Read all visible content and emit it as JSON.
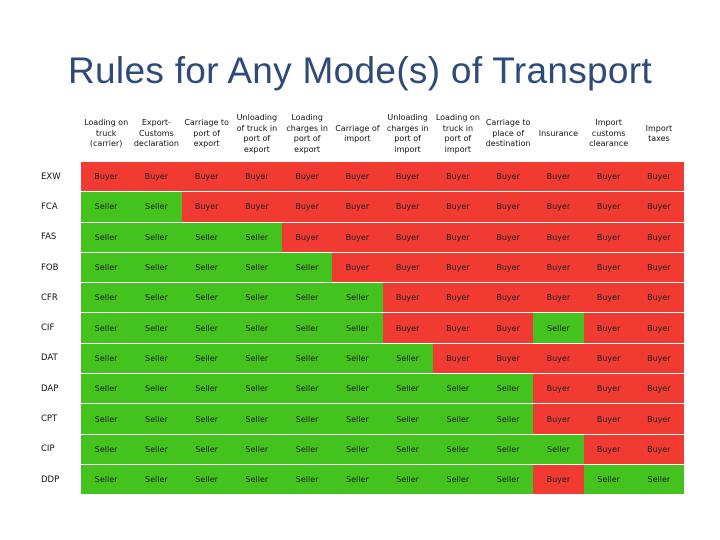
{
  "title": "Rules for Any Mode(s) of Transport",
  "columns": [
    "Loading on truck (carrier)",
    "Export-Customs declaration",
    "Carriage to port of export",
    "Unloading of truck in port of export",
    "Loading charges in port of export",
    "Carriage of import",
    "Unloading charges in port of import",
    "Loading on truck in port of import",
    "Carriage to place of destination",
    "Insurance",
    "Import customs clearance",
    "Import taxes"
  ],
  "rows": [
    {
      "term": "EXW",
      "cells": [
        "Buyer",
        "Buyer",
        "Buyer",
        "Buyer",
        "Buyer",
        "Buyer",
        "Buyer",
        "Buyer",
        "Buyer",
        "Buyer",
        "Buyer",
        "Buyer"
      ]
    },
    {
      "term": "FCA",
      "cells": [
        "Seller",
        "Seller",
        "Buyer",
        "Buyer",
        "Buyer",
        "Buyer",
        "Buyer",
        "Buyer",
        "Buyer",
        "Buyer",
        "Buyer",
        "Buyer"
      ]
    },
    {
      "term": "FAS",
      "cells": [
        "Seller",
        "Seller",
        "Seller",
        "Seller",
        "Buyer",
        "Buyer",
        "Buyer",
        "Buyer",
        "Buyer",
        "Buyer",
        "Buyer",
        "Buyer"
      ]
    },
    {
      "term": "FOB",
      "cells": [
        "Seller",
        "Seller",
        "Seller",
        "Seller",
        "Seller",
        "Buyer",
        "Buyer",
        "Buyer",
        "Buyer",
        "Buyer",
        "Buyer",
        "Buyer"
      ]
    },
    {
      "term": "CFR",
      "cells": [
        "Seller",
        "Seller",
        "Seller",
        "Seller",
        "Seller",
        "Seller",
        "Buyer",
        "Buyer",
        "Buyer",
        "Buyer",
        "Buyer",
        "Buyer"
      ]
    },
    {
      "term": "CIF",
      "cells": [
        "Seller",
        "Seller",
        "Seller",
        "Seller",
        "Seller",
        "Seller",
        "Buyer",
        "Buyer",
        "Buyer",
        "Seller",
        "Buyer",
        "Buyer"
      ]
    },
    {
      "term": "DAT",
      "cells": [
        "Seller",
        "Seller",
        "Seller",
        "Seller",
        "Seller",
        "Seller",
        "Seller",
        "Buyer",
        "Buyer",
        "Buyer",
        "Buyer",
        "Buyer"
      ]
    },
    {
      "term": "DAP",
      "cells": [
        "Seller",
        "Seller",
        "Seller",
        "Seller",
        "Seller",
        "Seller",
        "Seller",
        "Seller",
        "Seller",
        "Buyer",
        "Buyer",
        "Buyer"
      ]
    },
    {
      "term": "CPT",
      "cells": [
        "Seller",
        "Seller",
        "Seller",
        "Seller",
        "Seller",
        "Seller",
        "Seller",
        "Seller",
        "Seller",
        "Buyer",
        "Buyer",
        "Buyer"
      ]
    },
    {
      "term": "CIP",
      "cells": [
        "Seller",
        "Seller",
        "Seller",
        "Seller",
        "Seller",
        "Seller",
        "Seller",
        "Seller",
        "Seller",
        "Seller",
        "Buyer",
        "Buyer"
      ]
    },
    {
      "term": "DDP",
      "cells": [
        "Seller",
        "Seller",
        "Seller",
        "Seller",
        "Seller",
        "Seller",
        "Seller",
        "Seller",
        "Seller",
        "Buyer",
        "Seller",
        "Seller"
      ]
    }
  ],
  "colors": {
    "buyer": "#f03a32",
    "seller": "#44c21e",
    "title": "#2e4a78"
  }
}
